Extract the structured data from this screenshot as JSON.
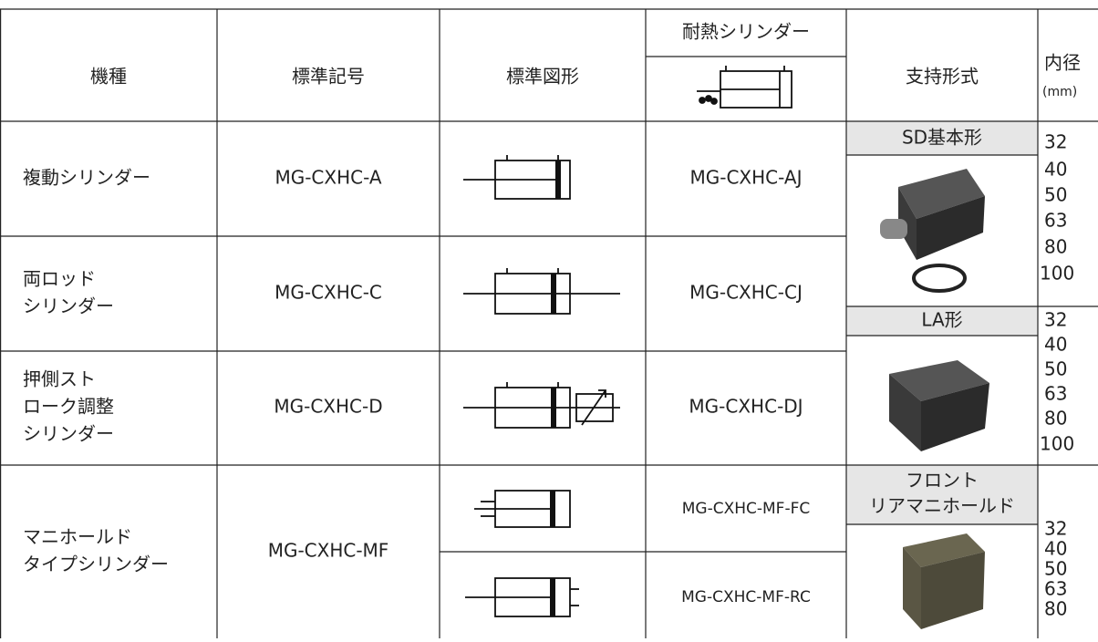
{
  "header": {
    "model": "機種",
    "code": "標準記号",
    "symbol": "標準図形",
    "heat": "耐熱シリンダー",
    "support": "支持形式",
    "bore": "内径",
    "bore_unit": "(mm)"
  },
  "rows": [
    {
      "model": [
        "複動シリンダー"
      ],
      "code": "MG-CXHC-A",
      "heat": [
        "MG-CXHC-AJ"
      ]
    },
    {
      "model": [
        "両ロッド",
        "シリンダー"
      ],
      "code": "MG-CXHC-C",
      "heat": [
        "MG-CXHC-CJ"
      ]
    },
    {
      "model": [
        "押側スト",
        "ローク調整",
        "シリンダー"
      ],
      "code": "MG-CXHC-D",
      "heat": [
        "MG-CXHC-DJ"
      ]
    },
    {
      "model": [
        "マニホールド",
        "タイプシリンダー"
      ],
      "code": "MG-CXHC-MF",
      "heat": [
        "MG-CXHC-MF-FC",
        "MG-CXHC-MF-RC"
      ]
    }
  ],
  "supports": [
    {
      "label": [
        "SD基本形"
      ],
      "bores": [
        32,
        40,
        50,
        63,
        80,
        100
      ]
    },
    {
      "label": [
        "LA形"
      ],
      "bores": [
        32,
        40,
        50,
        63,
        80,
        100
      ]
    },
    {
      "label": [
        "フロント",
        "リアマニホールド"
      ],
      "bores": [
        32,
        40,
        50,
        63,
        80
      ]
    }
  ]
}
